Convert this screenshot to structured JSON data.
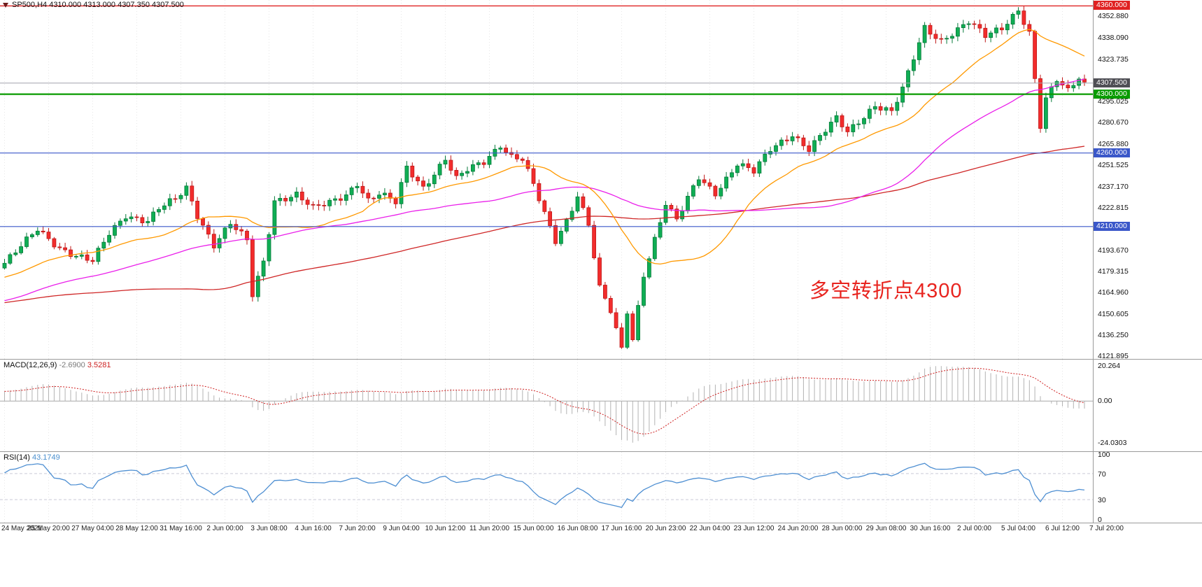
{
  "header": {
    "symbol_ohlc": "SP500,H4 4310.000 4313.000 4307.350 4307.500"
  },
  "annotation": {
    "text": "多空转折点4300",
    "color": "#e8241f"
  },
  "colors": {
    "up": "#0fae54",
    "up_stroke": "#067a39",
    "down": "#f22c2c",
    "down_stroke": "#bf1818",
    "macd_histogram": "#b3b3b3",
    "macd_signal": "#cf1f1f",
    "rsi_line": "#4e8fd2",
    "rsi_levels": "#c9c9d6",
    "grid": "#e6e6e6",
    "current_price_line": "#a3a3ad"
  },
  "levels": [
    {
      "label": "4360.000",
      "value": 4360.0,
      "color": "#e02222",
      "line_color": "#e02222",
      "line_width": 1.4,
      "role": "resistance"
    },
    {
      "label": "4307.500",
      "value": 4307.5,
      "color": "#4f4f55",
      "line_color": "#a3a3ad",
      "line_width": 1,
      "role": "current-price"
    },
    {
      "label": "4300.000",
      "value": 4300.0,
      "color": "#089b00",
      "line_color": "#089b00",
      "line_width": 2.2,
      "role": "pivot"
    },
    {
      "label": "4260.000",
      "value": 4260.0,
      "color": "#3a57c9",
      "line_color": "#3a57c9",
      "line_width": 1.2,
      "role": "support"
    },
    {
      "label": "4210.000",
      "value": 4210.0,
      "color": "#3a57c9",
      "line_color": "#3a57c9",
      "line_width": 1.2,
      "role": "support"
    }
  ],
  "price_axis": {
    "labels": [
      {
        "text": "4352.880",
        "value": 4352.88
      },
      {
        "text": "4338.090",
        "value": 4338.09
      },
      {
        "text": "4323.735",
        "value": 4323.735
      },
      {
        "text": "4295.025",
        "value": 4295.025
      },
      {
        "text": "4280.670",
        "value": 4280.67
      },
      {
        "text": "4265.880",
        "value": 4265.88
      },
      {
        "text": "4251.525",
        "value": 4251.525
      },
      {
        "text": "4237.170",
        "value": 4237.17
      },
      {
        "text": "4222.815",
        "value": 4222.815
      },
      {
        "text": "4208.460",
        "value": 4208.46
      },
      {
        "text": "4193.670",
        "value": 4193.67
      },
      {
        "text": "4179.315",
        "value": 4179.315
      },
      {
        "text": "4164.960",
        "value": 4164.96
      },
      {
        "text": "4150.605",
        "value": 4150.605
      },
      {
        "text": "4136.250",
        "value": 4136.25
      },
      {
        "text": "4121.895",
        "value": 4121.895
      }
    ]
  },
  "indicators": {
    "macd": {
      "label": "MACD(12,26,9)",
      "value_main": "-2.6900",
      "value_signal": "3.5281",
      "axis": [
        {
          "text": "20.264",
          "value": 20.264
        },
        {
          "text": "0.00",
          "value": 0
        },
        {
          "text": "-24.0303",
          "value": -24.0303
        }
      ]
    },
    "rsi": {
      "label": "RSI(14)",
      "value": "43.1749",
      "axis": [
        {
          "text": "100",
          "value": 100
        },
        {
          "text": "70",
          "value": 70
        },
        {
          "text": "30",
          "value": 30
        },
        {
          "text": "0",
          "value": 0
        }
      ],
      "levels": [
        70,
        30
      ]
    }
  },
  "time_axis": {
    "labels": [
      "24 May 2021",
      "25 May 20:00",
      "27 May 04:00",
      "28 May 12:00",
      "31 May 16:00",
      "2 Jun 00:00",
      "3 Jun 08:00",
      "4 Jun 16:00",
      "7 Jun 20:00",
      "9 Jun 04:00",
      "10 Jun 12:00",
      "11 Jun 20:00",
      "15 Jun 00:00",
      "16 Jun 08:00",
      "17 Jun 16:00",
      "20 Jun 23:00",
      "22 Jun 04:00",
      "23 Jun 12:00",
      "24 Jun 20:00",
      "28 Jun 00:00",
      "29 Jun 08:00",
      "30 Jun 16:00",
      "2 Jul 00:00",
      "5 Jul 04:00",
      "6 Jul 12:00",
      "7 Jul 20:00"
    ],
    "bars_per_tick": 8
  },
  "chart_data": {
    "type": "candlestick",
    "symbol": "SP500",
    "timeframe": "H4",
    "ohlc_current": {
      "open": 4310.0,
      "high": 4313.0,
      "low": 4307.35,
      "close": 4307.5
    },
    "price_axis_range": [
      4120.0,
      4364.0
    ],
    "anchors": [
      [
        0,
        4185
      ],
      [
        3,
        4196
      ],
      [
        6,
        4208
      ],
      [
        10,
        4196
      ],
      [
        13,
        4190
      ],
      [
        16,
        4186
      ],
      [
        19,
        4205
      ],
      [
        22,
        4218
      ],
      [
        26,
        4214
      ],
      [
        28,
        4222
      ],
      [
        31,
        4228
      ],
      [
        33,
        4236
      ],
      [
        35,
        4218
      ],
      [
        38,
        4198
      ],
      [
        41,
        4212
      ],
      [
        44,
        4200
      ],
      [
        45,
        4163
      ],
      [
        47,
        4186
      ],
      [
        49,
        4228
      ],
      [
        53,
        4232
      ],
      [
        56,
        4222
      ],
      [
        59,
        4226
      ],
      [
        62,
        4232
      ],
      [
        64,
        4240
      ],
      [
        66,
        4228
      ],
      [
        68,
        4232
      ],
      [
        71,
        4226
      ],
      [
        73,
        4250
      ],
      [
        76,
        4237
      ],
      [
        80,
        4256
      ],
      [
        82,
        4242
      ],
      [
        84,
        4248
      ],
      [
        87,
        4254
      ],
      [
        90,
        4266
      ],
      [
        92,
        4258
      ],
      [
        94,
        4256
      ],
      [
        96,
        4238
      ],
      [
        98,
        4218
      ],
      [
        100,
        4200
      ],
      [
        102,
        4214
      ],
      [
        104,
        4232
      ],
      [
        106,
        4212
      ],
      [
        108,
        4168
      ],
      [
        110,
        4152
      ],
      [
        112,
        4126
      ],
      [
        113,
        4152
      ],
      [
        114,
        4133
      ],
      [
        116,
        4178
      ],
      [
        120,
        4226
      ],
      [
        122,
        4214
      ],
      [
        126,
        4243
      ],
      [
        129,
        4233
      ],
      [
        133,
        4253
      ],
      [
        136,
        4247
      ],
      [
        139,
        4262
      ],
      [
        143,
        4273
      ],
      [
        146,
        4263
      ],
      [
        151,
        4283
      ],
      [
        153,
        4274
      ],
      [
        158,
        4293
      ],
      [
        161,
        4288
      ],
      [
        163,
        4303
      ],
      [
        167,
        4345
      ],
      [
        170,
        4337
      ],
      [
        175,
        4349
      ],
      [
        178,
        4339
      ],
      [
        181,
        4345
      ],
      [
        184,
        4358
      ],
      [
        186,
        4342
      ],
      [
        188,
        4278
      ],
      [
        189,
        4296
      ],
      [
        191,
        4309
      ],
      [
        193,
        4302
      ],
      [
        195,
        4312
      ],
      [
        196,
        4307.5
      ]
    ],
    "prehistory_anchors": [
      [
        -120,
        4128
      ],
      [
        -100,
        4170
      ],
      [
        -90,
        4225
      ],
      [
        -84,
        4238
      ],
      [
        -80,
        4150
      ],
      [
        -77,
        4062
      ],
      [
        -72,
        4100
      ],
      [
        -66,
        4142
      ],
      [
        -58,
        4155
      ],
      [
        -50,
        4128
      ],
      [
        -40,
        4148
      ],
      [
        -30,
        4160
      ],
      [
        -20,
        4168
      ],
      [
        -10,
        4175
      ]
    ],
    "moving_averages": [
      {
        "name": "fast-ma",
        "period": 21,
        "color": "#ff9900"
      },
      {
        "name": "medium-ma",
        "period": 55,
        "color": "#ea1fea"
      },
      {
        "name": "slow-ma",
        "period": 120,
        "color": "#cf2626"
      }
    ]
  }
}
